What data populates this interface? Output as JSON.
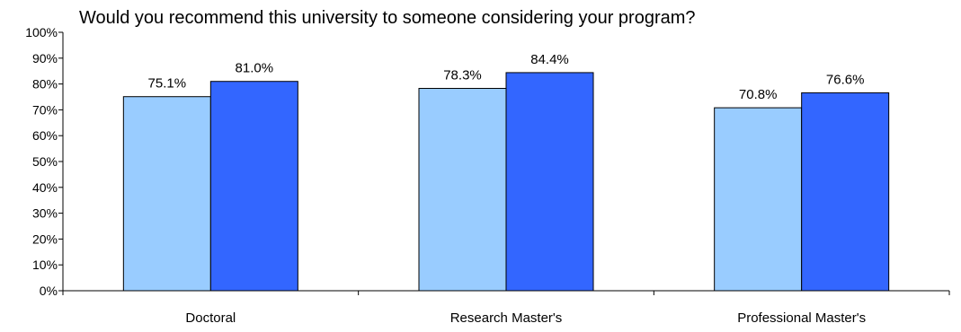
{
  "chart_data": {
    "type": "bar",
    "title": "Would you recommend this university to someone considering your program?",
    "categories": [
      "Doctoral",
      "Research Master's",
      "Professional Master's"
    ],
    "series": [
      {
        "values": [
          75.1,
          78.3,
          70.8
        ],
        "labels": [
          "75.1%",
          "78.3%",
          "70.8%"
        ],
        "color": "#99ccff"
      },
      {
        "values": [
          81.0,
          84.4,
          76.6
        ],
        "labels": [
          "81.0%",
          "84.4%",
          "76.6%"
        ],
        "color": "#3366ff"
      }
    ],
    "ylim": [
      0,
      100
    ],
    "yticks": [
      "0%",
      "10%",
      "20%",
      "30%",
      "40%",
      "50%",
      "60%",
      "70%",
      "80%",
      "90%",
      "100%"
    ],
    "grid": false,
    "legend": "none"
  }
}
